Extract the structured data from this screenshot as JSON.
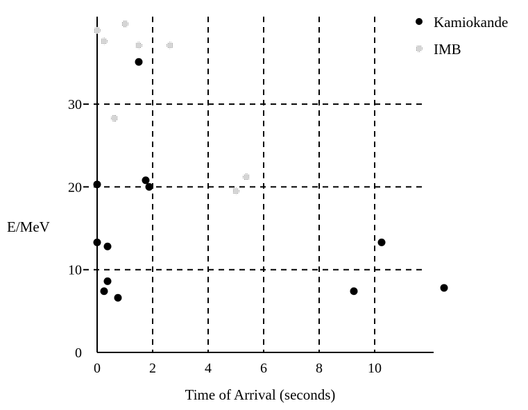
{
  "chart_data": {
    "type": "scatter",
    "title": "",
    "xlabel": "Time of Arrival (seconds)",
    "ylabel": "E/MeV",
    "xlim": [
      0,
      12
    ],
    "ylim": [
      0,
      40
    ],
    "xticks": [
      0,
      2,
      4,
      6,
      8,
      10
    ],
    "yticks": [
      0,
      10,
      20,
      30
    ],
    "grid": true,
    "legend_position": "top-right",
    "series": [
      {
        "name": "Kamiokande",
        "color": "#000000",
        "points": [
          [
            0,
            20.3
          ],
          [
            0,
            13.3
          ],
          [
            0.375,
            12.8
          ],
          [
            0.375,
            8.6
          ],
          [
            0.25,
            7.4
          ],
          [
            0.75,
            6.6
          ],
          [
            1.5,
            35.1
          ],
          [
            1.75,
            20.8
          ],
          [
            1.875,
            20.0
          ],
          [
            9.25,
            7.4
          ],
          [
            10.25,
            13.3
          ],
          [
            12.5,
            7.8
          ]
        ]
      },
      {
        "name": "IMB",
        "color": "#9a9a9a",
        "points": [
          [
            0,
            38.9
          ],
          [
            0.25,
            37.6
          ],
          [
            1.0,
            39.7
          ],
          [
            1.5,
            37.1
          ],
          [
            2.625,
            37.1
          ],
          [
            0.625,
            28.3
          ],
          [
            5.0,
            19.5
          ],
          [
            5.375,
            21.2
          ]
        ]
      }
    ]
  }
}
